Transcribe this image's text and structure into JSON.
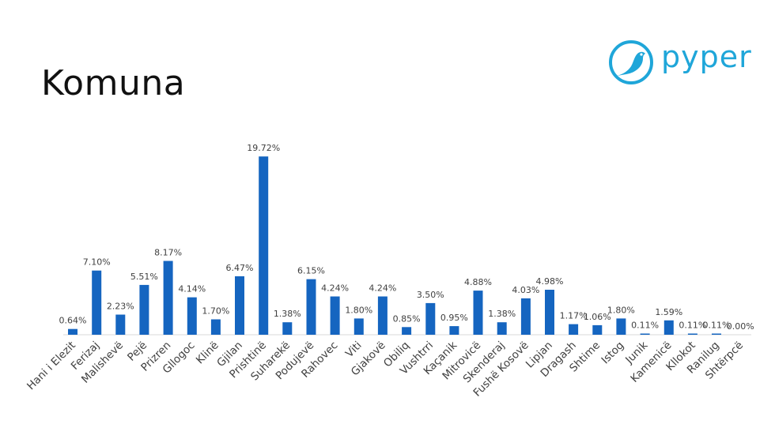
{
  "slide": {
    "title": "Komuna"
  },
  "logo": {
    "text": "pyper",
    "color": "#1FA6D9"
  },
  "chart_data": {
    "type": "bar",
    "title": "",
    "xlabel": "",
    "ylabel": "",
    "bar_color": "#1565C0",
    "ylim": [
      0,
      20
    ],
    "grid": false,
    "legend": "none",
    "categories": [
      "Hani i Elezit",
      "Ferizaj",
      "Malishevë",
      "Pejë",
      "Prizren",
      "Gllogoc",
      "Klinë",
      "Gjilan",
      "Prishtinë",
      "Suharekë",
      "Podujevë",
      "Rahovec",
      "Viti",
      "Gjakovë",
      "Obiliq",
      "Vushtrri",
      "Kaçanik",
      "Mitrovicë",
      "Skenderaj",
      "Fushë Kosovë",
      "Lipjan",
      "Dragash",
      "Shtime",
      "Istog",
      "Junik",
      "Kamenicë",
      "Kllokot",
      "Ranilug",
      "Shtërpcë"
    ],
    "values": [
      0.64,
      7.1,
      2.23,
      5.51,
      8.17,
      4.14,
      1.7,
      6.47,
      19.72,
      1.38,
      6.15,
      4.24,
      1.8,
      4.24,
      0.85,
      3.5,
      0.95,
      4.88,
      1.38,
      4.03,
      4.98,
      1.17,
      1.06,
      1.8,
      0.11,
      1.59,
      0.11,
      0.11,
      0.0
    ],
    "data_labels": [
      "0.64%",
      "7.10%",
      "2.23%",
      "5.51%",
      "8.17%",
      "4.14%",
      "1.70%",
      "6.47%",
      "19.72%",
      "1.38%",
      "6.15%",
      "4.24%",
      "1.80%",
      "4.24%",
      "0.85%",
      "3.50%",
      "0.95%",
      "4.88%",
      "1.38%",
      "4.03%",
      "4.98%",
      "1.17%",
      "1.06%",
      "1.80%",
      "0.11%",
      "1.59%",
      "0.11%",
      "0.11%",
      "0.00%"
    ]
  }
}
